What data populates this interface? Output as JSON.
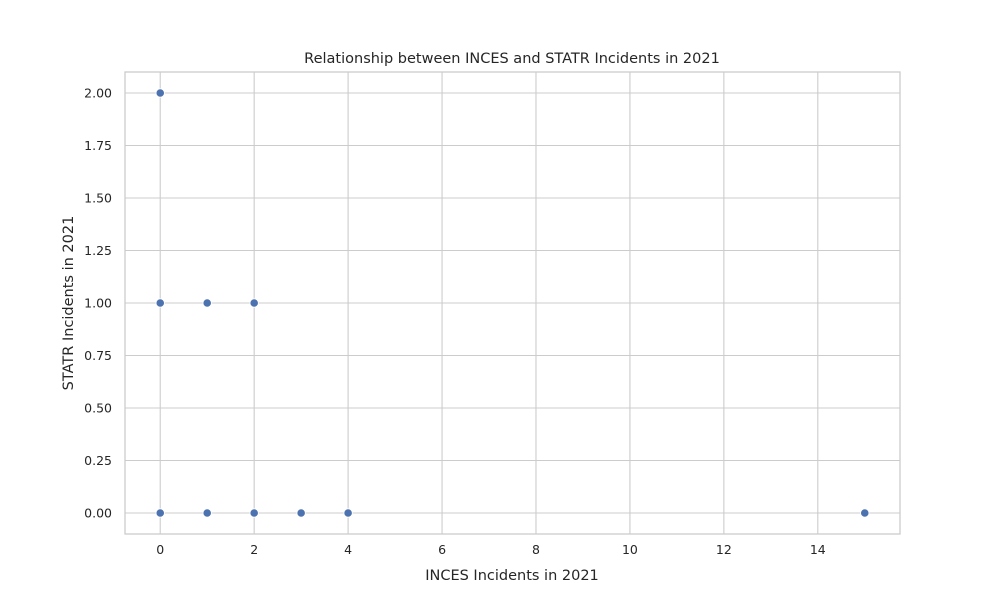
{
  "chart_data": {
    "type": "scatter",
    "title": "Relationship between INCES and STATR Incidents in 2021",
    "xlabel": "INCES Incidents in 2021",
    "ylabel": "STATR Incidents in 2021",
    "xlim": [
      -0.75,
      15.75
    ],
    "ylim": [
      -0.1,
      2.1
    ],
    "xticks": [
      0,
      2,
      4,
      6,
      8,
      10,
      12,
      14
    ],
    "xtick_labels": [
      "0",
      "2",
      "4",
      "6",
      "8",
      "10",
      "12",
      "14"
    ],
    "yticks": [
      0,
      0.25,
      0.5,
      0.75,
      1,
      1.25,
      1.5,
      1.75,
      2
    ],
    "ytick_labels": [
      "0.00",
      "0.25",
      "0.50",
      "0.75",
      "1.00",
      "1.25",
      "1.50",
      "1.75",
      "2.00"
    ],
    "grid": true,
    "marker_color": "#4c72b0",
    "points": [
      {
        "x": 0,
        "y": 2
      },
      {
        "x": 0,
        "y": 1
      },
      {
        "x": 1,
        "y": 1
      },
      {
        "x": 2,
        "y": 1
      },
      {
        "x": 0,
        "y": 0
      },
      {
        "x": 1,
        "y": 0
      },
      {
        "x": 2,
        "y": 0
      },
      {
        "x": 3,
        "y": 0
      },
      {
        "x": 4,
        "y": 0
      },
      {
        "x": 15,
        "y": 0
      }
    ]
  }
}
